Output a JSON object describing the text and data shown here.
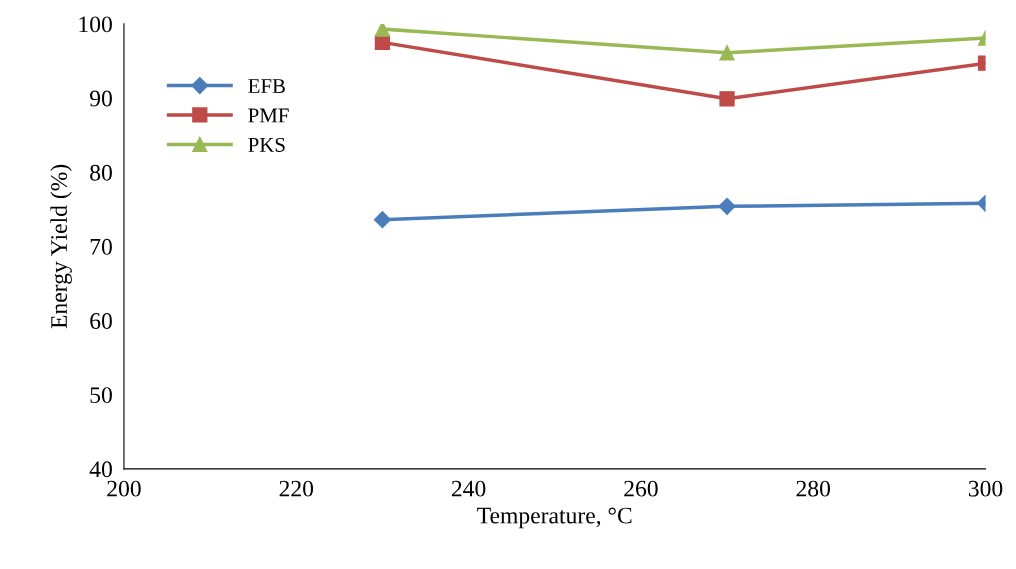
{
  "chart_data": {
    "type": "line",
    "xlabel": "Temperature, °C",
    "ylabel": "Energy Yield (%)",
    "x": [
      230,
      270,
      300
    ],
    "series": [
      {
        "name": "EFB",
        "color": "#4a7ebb",
        "marker": "diamond",
        "values": [
          73.6,
          75.4,
          75.8
        ]
      },
      {
        "name": "PMF",
        "color": "#be4b48",
        "marker": "square",
        "values": [
          97.5,
          89.9,
          94.7
        ]
      },
      {
        "name": "PKS",
        "color": "#98b954",
        "marker": "triangle",
        "values": [
          99.3,
          96.1,
          98.1
        ]
      }
    ],
    "xlim": [
      200,
      300
    ],
    "xticks": [
      200,
      220,
      240,
      260,
      280,
      300
    ],
    "ylim": [
      40,
      100
    ],
    "yticks": [
      40,
      50,
      60,
      70,
      80,
      90,
      100
    ],
    "grid": false,
    "legend": "top left",
    "line_style": "solid"
  }
}
